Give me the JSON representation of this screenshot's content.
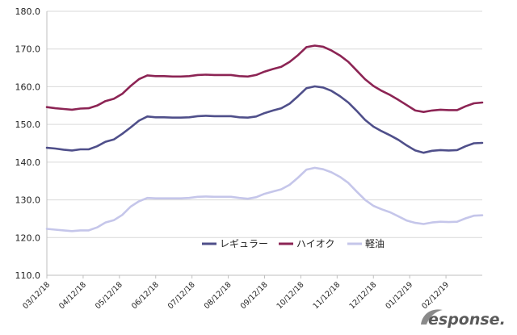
{
  "chart_data": {
    "type": "line",
    "title": "",
    "xlabel": "",
    "ylabel": "",
    "ylim": [
      110,
      180
    ],
    "y_ticks": [
      "110.0",
      "120.0",
      "130.0",
      "140.0",
      "150.0",
      "160.0",
      "170.0",
      "180.0"
    ],
    "x_tick_labels": [
      "03/12/18",
      "04/12/18",
      "05/12/18",
      "06/12/18",
      "07/12/18",
      "08/12/18",
      "09/12/18",
      "10/12/18",
      "11/12/18",
      "12/12/18",
      "01/12/19",
      "02/12/19"
    ],
    "grid": "horizontal",
    "legend_position": "bottom-center",
    "series": [
      {
        "name": "レギュラー",
        "color": "#4f4f8a",
        "values": [
          143.8,
          143.6,
          143.3,
          143.1,
          143.4,
          143.4,
          144.2,
          145.4,
          146,
          147.5,
          149.2,
          151,
          152.1,
          151.9,
          151.9,
          151.8,
          151.8,
          151.9,
          152.2,
          152.3,
          152.2,
          152.2,
          152.2,
          151.9,
          151.8,
          152.1,
          153,
          153.7,
          154.3,
          155.5,
          157.5,
          159.6,
          160.1,
          159.8,
          158.9,
          157.5,
          155.8,
          153.6,
          151.2,
          149.4,
          148.2,
          147.1,
          145.9,
          144.4,
          143.1,
          142.5,
          143,
          143.2,
          143.1,
          143.2,
          144.2,
          145,
          145.1
        ]
      },
      {
        "name": "ハイオク",
        "color": "#8c2454",
        "values": [
          154.6,
          154.3,
          154.1,
          153.9,
          154.2,
          154.3,
          155,
          156.2,
          156.8,
          158.1,
          160.2,
          162,
          163,
          162.8,
          162.8,
          162.7,
          162.7,
          162.8,
          163.1,
          163.2,
          163.1,
          163.1,
          163.1,
          162.8,
          162.7,
          163.1,
          164,
          164.7,
          165.3,
          166.6,
          168.4,
          170.5,
          170.9,
          170.6,
          169.6,
          168.3,
          166.6,
          164.3,
          162,
          160.2,
          158.9,
          157.8,
          156.5,
          155.1,
          153.7,
          153.3,
          153.7,
          153.9,
          153.8,
          153.8,
          154.8,
          155.6,
          155.8
        ]
      },
      {
        "name": "軽油",
        "color": "#c5c6ea",
        "values": [
          122.3,
          122.1,
          121.9,
          121.7,
          121.9,
          121.9,
          122.7,
          124,
          124.6,
          126,
          128.2,
          129.6,
          130.5,
          130.4,
          130.4,
          130.4,
          130.4,
          130.5,
          130.8,
          130.9,
          130.8,
          130.8,
          130.8,
          130.5,
          130.3,
          130.7,
          131.6,
          132.2,
          132.8,
          134,
          135.9,
          138,
          138.5,
          138.1,
          137.3,
          136.1,
          134.5,
          132.2,
          130,
          128.4,
          127.5,
          126.7,
          125.6,
          124.5,
          123.9,
          123.6,
          124,
          124.2,
          124.1,
          124.2,
          125.1,
          125.8,
          125.9
        ]
      }
    ]
  },
  "watermark": {
    "text": "esponse.",
    "color": "#5a5a5a"
  }
}
